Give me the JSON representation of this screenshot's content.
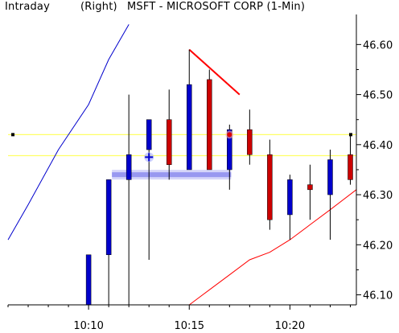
{
  "header": {
    "left_label": "Intraday",
    "right_label": "(Right)",
    "symbol_title": "MSFT - MICROSOFT CORP (1-Min)"
  },
  "colors": {
    "up": "#0000cc",
    "down": "#cc0000",
    "wick": "#000000",
    "reference_line": "#ffff66",
    "blue_curve": "#0000cc",
    "red_curve": "#ff0000",
    "trend_line": "#ff0000",
    "support_band": "#8888ee"
  },
  "chart_data": {
    "type": "candlestick",
    "title": "MSFT - MICROSOFT CORP (1-Min)",
    "y_axis": {
      "position": "right",
      "ylim": [
        46.08,
        46.66
      ],
      "ticks": [
        46.1,
        46.2,
        46.3,
        46.4,
        46.5,
        46.6
      ],
      "tick_labels": [
        "46.10",
        "46.20",
        "46.30",
        "46.40",
        "46.50",
        "46.60"
      ]
    },
    "x_axis": {
      "tick_labels": [
        "10:10",
        "10:15",
        "10:20"
      ],
      "tick_minutes": [
        10,
        15,
        20
      ],
      "xlim_minutes": [
        6,
        23.3
      ]
    },
    "candles": [
      {
        "time": "10:10",
        "open": 46.08,
        "high": 46.18,
        "low": 46.08,
        "close": 46.18
      },
      {
        "time": "10:11",
        "open": 46.18,
        "high": 46.33,
        "low": 46.08,
        "close": 46.33
      },
      {
        "time": "10:12",
        "open": 46.33,
        "high": 46.5,
        "low": 46.08,
        "close": 46.38
      },
      {
        "time": "10:13",
        "open": 46.39,
        "high": 46.45,
        "low": 46.17,
        "close": 46.45
      },
      {
        "time": "10:14",
        "open": 46.45,
        "high": 46.51,
        "low": 46.33,
        "close": 46.36
      },
      {
        "time": "10:15",
        "open": 46.35,
        "high": 46.59,
        "low": 46.35,
        "close": 46.52
      },
      {
        "time": "10:16",
        "open": 46.53,
        "high": 46.55,
        "low": 46.35,
        "close": 46.35
      },
      {
        "time": "10:17",
        "open": 46.35,
        "high": 46.44,
        "low": 46.31,
        "close": 46.43
      },
      {
        "time": "10:18",
        "open": 46.43,
        "high": 46.47,
        "low": 46.36,
        "close": 46.38
      },
      {
        "time": "10:19",
        "open": 46.38,
        "high": 46.41,
        "low": 46.23,
        "close": 46.25
      },
      {
        "time": "10:20",
        "open": 46.26,
        "high": 46.34,
        "low": 46.21,
        "close": 46.33
      },
      {
        "time": "10:21",
        "open": 46.32,
        "high": 46.36,
        "low": 46.25,
        "close": 46.31
      },
      {
        "time": "10:22",
        "open": 46.3,
        "high": 46.39,
        "low": 46.21,
        "close": 46.37
      },
      {
        "time": "10:23",
        "open": 46.38,
        "high": 46.42,
        "low": 46.32,
        "close": 46.33
      }
    ],
    "horizontal_lines": [
      46.42,
      46.378
    ],
    "marker_level": 46.42,
    "blue_curve": {
      "points": [
        [
          6.0,
          46.21
        ],
        [
          7.0,
          46.28
        ],
        [
          8.5,
          46.39
        ],
        [
          10.0,
          46.48
        ],
        [
          11.0,
          46.57
        ],
        [
          12.0,
          46.64
        ]
      ]
    },
    "red_curve": {
      "points": [
        [
          15.0,
          46.08
        ],
        [
          16.0,
          46.11
        ],
        [
          17.0,
          46.14
        ],
        [
          18.0,
          46.17
        ],
        [
          19.0,
          46.185
        ],
        [
          20.0,
          46.21
        ],
        [
          21.0,
          46.24
        ],
        [
          22.0,
          46.27
        ],
        [
          23.3,
          46.31
        ]
      ]
    },
    "trend_line": {
      "from": [
        15.0,
        46.59
      ],
      "to": [
        17.5,
        46.5
      ]
    },
    "support_band": {
      "from_minute": 11.0,
      "to_minute": 17.0,
      "level": 46.34
    },
    "markers": [
      {
        "type": "blue_star",
        "minute": 13.0,
        "value": 46.375
      },
      {
        "type": "red_dot",
        "minute": 17.0,
        "value": 46.42
      }
    ]
  }
}
